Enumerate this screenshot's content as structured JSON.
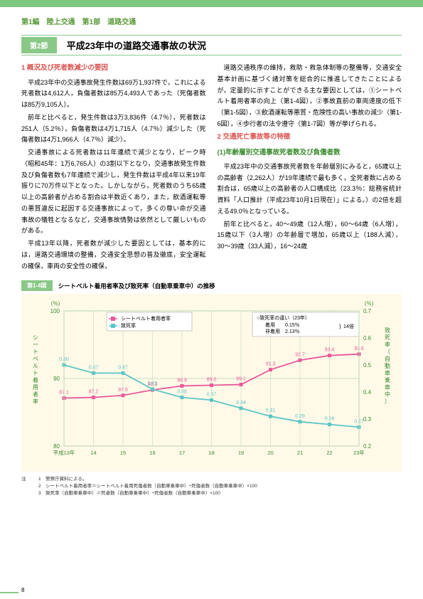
{
  "breadcrumb": "第1編　陸上交通　第1部　道路交通",
  "section_badge": "第2節",
  "section_title": "平成23年中の道路交通事故の状況",
  "left_col": {
    "head1": "1 概況及び死者数減少の要因",
    "p1": "平成23年中の交通事故発生件数は69万1,937件で，これによる死者数は4,612人，負傷者数は85万4,493人であった（死傷者数は85万9,105人）。",
    "p2": "前年と比べると，発生件数は3万3,836件（4.7％），死者数は251人（5.2％），負傷者数は4万1,715人（4.7％）減少した（死傷者数は4万1,966人（4.7％）減少）。",
    "p3": "交通事故による死者数は11年連続で減少となり，ピーク時（昭和45年：1万6,765人）の3割以下となり，交通事故発生件数及び負傷者数も7年連続で減少し，発生件数は平成4年以来19年振りに70万件以下となった。しかしながら，死者数のうち65歳以上の高齢者が占める割合は半数近くあり，また，飲酒運転等の悪質違反に起因する交通事故によって，多くの尊い命が交通事故の犠牲となるなど，交通事故情勢は依然として厳しいものがある。",
    "p4": "平成13年以降，死者数が減少した要因としては，基本的には，道路交通環境の整備，交通安全思想の普及徹底，安全運転の確保，車両の安全性の確保，"
  },
  "right_col": {
    "p1": "道路交通秩序の維持，救助・救急体制等の整備等，交通安全基本計画に基づく諸対策を総合的に推進してきたことによるが，定量的に示すことができる主な要因としては，①シートベルト着用者率の向上（第1-4図），②事故直前の車両速度の低下（第1-5図），③飲酒運転等悪質・危険性の高い事故の減少（第1-6図），④歩行者の法令遵守（第1-7図）等が挙げられる。",
    "head2": "2 交通死亡事故等の特徴",
    "sub2": "(1)年齢層別交通事故死者数及び負傷者数",
    "p2": "平成23年中の交通事故死者数を年齢層別にみると，65歳以上の高齢者（2,262人）が19年連続で最も多く，全死者数に占める割合は，65歳以上の高齢者の人口構成比（23.3％：総務省統計資料「人口推計（平成23年10月1日現在）」による。）の2倍を超える49.0％となっている。",
    "p3": "前年と比べると，40〜49歳（12人増），60〜64歳（6人増），15歳以下（3人増）の年齢層で増加，65歳以上（188人減），30〜39歳（33人減），16〜24歳"
  },
  "chart": {
    "caption_badge": "第1-4図",
    "caption_text": "シートベルト着用者率及び致死率（自動車乗車中）の推移",
    "legend_pink": "シートベルト着用者率",
    "legend_cyan": "致死率",
    "box_title": "○致死率の違い（23年）",
    "box_line1": "着用　　0.15％",
    "box_line2": "非着用　2.13％",
    "box_ratio": "14倍",
    "y_left_label": "シートベルト着用者率",
    "y_left_unit": "(％)",
    "y_right_label": "致死率（自動車乗車中）",
    "y_right_unit": "(％)",
    "y_left_ticks": [
      80,
      90,
      100
    ],
    "y_right_ticks": [
      0.2,
      0.3,
      0.4,
      0.5,
      0.6,
      0.7
    ],
    "x_labels": [
      "平成13年",
      "14",
      "15",
      "16",
      "17",
      "18",
      "19",
      "20",
      "21",
      "22",
      "23年"
    ],
    "pink_values": [
      87.1,
      87.2,
      87.5,
      88.3,
      88.9,
      89.0,
      89.1,
      91.3,
      92.7,
      93.4,
      93.6
    ],
    "cyan_values": [
      0.5,
      0.47,
      0.47,
      0.41,
      0.38,
      0.37,
      0.34,
      0.31,
      0.29,
      0.28,
      0.27
    ],
    "colors": {
      "pink": "#e85a9a",
      "cyan": "#5cc5c5",
      "bg": "#fff9e8",
      "grid": "#b8d8b0",
      "axis_text": "#3a8a2e"
    }
  },
  "footnotes": {
    "note_label": "注",
    "n1": "1　警察庁資料による。",
    "n2": "2　シートベルト着用者率＝シートベルト着用死傷者数（自動車乗車中）÷死傷者数（自動車乗車中）×100",
    "n3": "3　致死率（自動車乗車中）＝死者数（自動車乗車中）÷死傷者数（自動車乗車中）×100"
  },
  "page_number": "8"
}
